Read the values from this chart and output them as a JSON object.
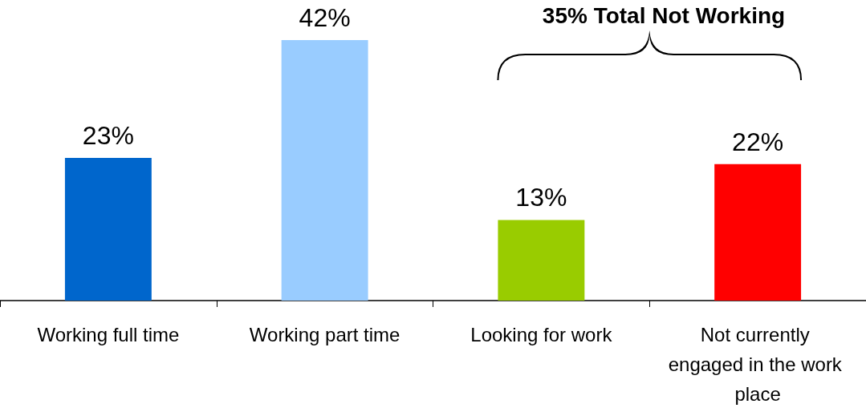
{
  "chart_data": {
    "type": "bar",
    "categories": [
      "Working full time",
      "Working part time",
      "Looking for work",
      "Not currently engaged in the work place"
    ],
    "values": [
      23,
      42,
      13,
      22
    ],
    "value_labels": [
      "23%",
      "42%",
      "13%",
      "22%"
    ],
    "colors": [
      "#0066cc",
      "#99ccff",
      "#99cc00",
      "#ff0000"
    ],
    "annotations": [
      "35% Total Not Working"
    ]
  }
}
